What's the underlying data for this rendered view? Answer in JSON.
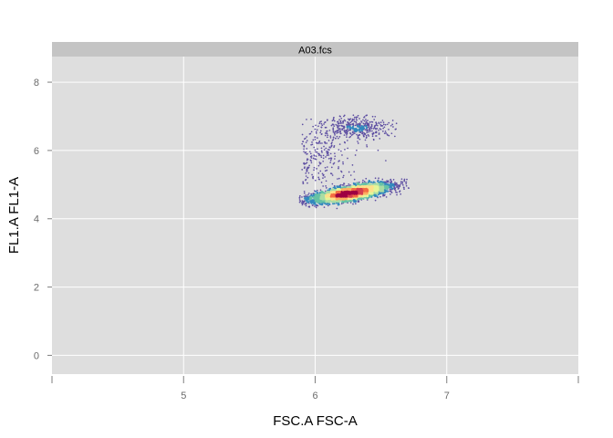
{
  "chart_data": {
    "type": "scatter",
    "panel_title": "A03.fcs",
    "xlabel": "FSC.A FSC-A",
    "ylabel": "FL1.A FL1-A",
    "xlim": [
      4.0,
      8.0
    ],
    "ylim": [
      -0.55,
      8.75
    ],
    "x_ticks": [
      5,
      6,
      7
    ],
    "x_tick_labels": [
      "5",
      "6",
      "7"
    ],
    "y_ticks": [
      0,
      2,
      4,
      6,
      8
    ],
    "y_tick_labels": [
      "0",
      "2",
      "4",
      "6",
      "8"
    ],
    "grid": true,
    "density_colormap": "spectral",
    "density_colors": [
      "#5e4fa2",
      "#3288bd",
      "#66c2a5",
      "#abdda4",
      "#e6f598",
      "#fee08b",
      "#fdae61",
      "#f46d43",
      "#d53e4f",
      "#9e0142"
    ],
    "panel_background": "#dedede",
    "strip_background": "#c4c4c4",
    "grid_color": "#ffffff",
    "clusters": [
      {
        "description": "main population",
        "center": [
          6.27,
          4.75
        ],
        "sd_major": 0.2,
        "sd_minor": 0.09,
        "slope": 0.9,
        "x_range": [
          5.88,
          6.72
        ],
        "y_range": [
          3.35,
          5.35
        ]
      },
      {
        "description": "upper population",
        "center": [
          6.3,
          6.7
        ],
        "sd_major": 0.13,
        "sd_minor": 0.16,
        "slope": 0,
        "x_range": [
          5.88,
          6.62
        ],
        "y_range": [
          6.1,
          7.05
        ]
      },
      {
        "description": "bridge scatter",
        "x_range": [
          5.9,
          6.6
        ],
        "y_range": [
          5.0,
          6.4
        ]
      }
    ]
  }
}
